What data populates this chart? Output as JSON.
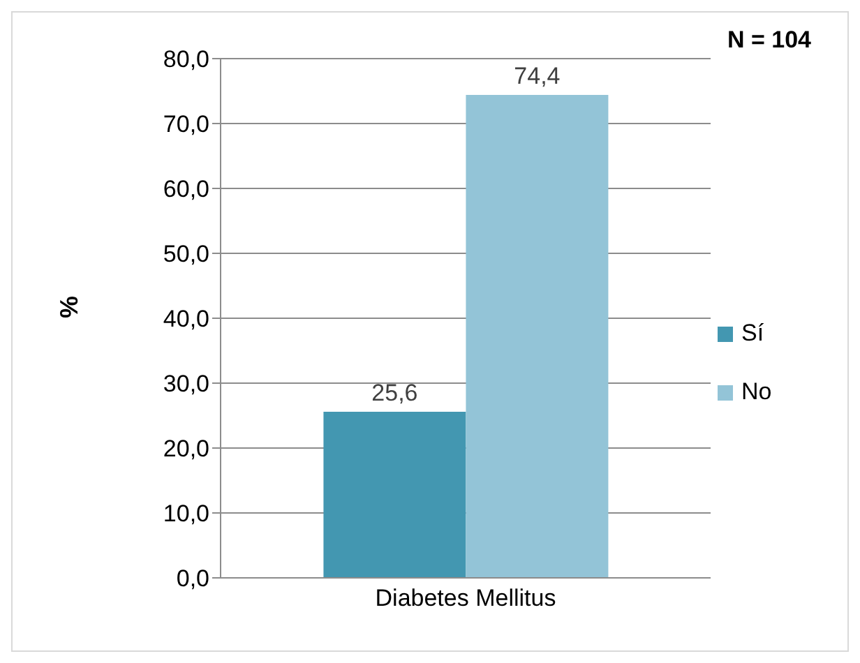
{
  "chart_data": {
    "type": "bar",
    "ylabel": "%",
    "categories": [
      "Diabetes Mellitus"
    ],
    "series": [
      {
        "name": "Sí",
        "color": "#4397b1",
        "values": [
          25.6
        ],
        "value_labels": [
          "25,6"
        ]
      },
      {
        "name": "No",
        "color": "#93c4d7",
        "values": [
          74.4
        ],
        "value_labels": [
          "74,4"
        ]
      }
    ],
    "ylim": [
      0,
      80
    ],
    "yticks": [
      {
        "value": 0,
        "label": "0,0"
      },
      {
        "value": 10,
        "label": "10,0"
      },
      {
        "value": 20,
        "label": "20,0"
      },
      {
        "value": 30,
        "label": "30,0"
      },
      {
        "value": 40,
        "label": "40,0"
      },
      {
        "value": 50,
        "label": "50,0"
      },
      {
        "value": 60,
        "label": "60,0"
      },
      {
        "value": 70,
        "label": "70,0"
      },
      {
        "value": 80,
        "label": "80,0"
      }
    ],
    "grid": "y",
    "legend": "right",
    "annotations": [
      "N = 104"
    ]
  }
}
